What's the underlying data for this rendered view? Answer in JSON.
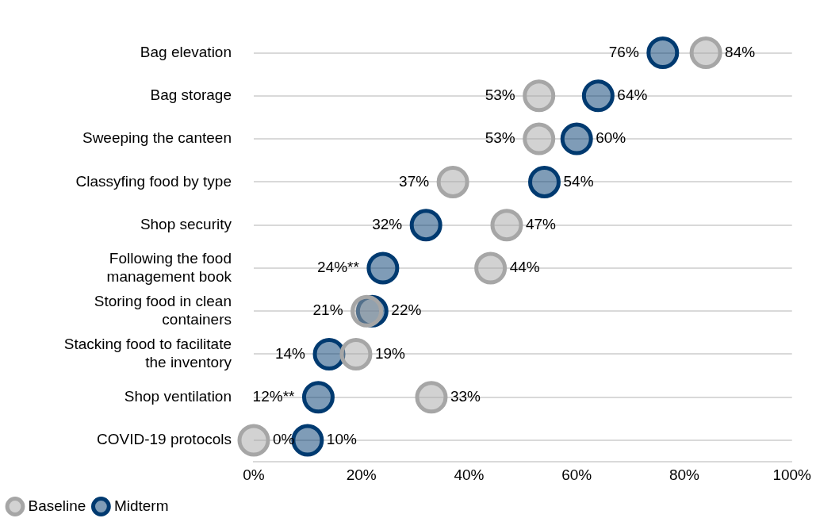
{
  "chart_data": {
    "type": "scatter",
    "orientation": "horizontal",
    "categories": [
      "Bag elevation",
      "Bag storage",
      "Sweeping the canteen",
      "Classyfing food by type",
      "Shop security",
      "Following the food management book",
      "Storing food in clean containers",
      "Stacking food to facilitate the inventory",
      "Shop ventilation",
      "COVID-19 protocols"
    ],
    "series": [
      {
        "name": "Baseline",
        "color": "#a6a6a6",
        "values": [
          84,
          53,
          53,
          37,
          47,
          44,
          21,
          19,
          33,
          0
        ],
        "value_labels": [
          "84%",
          "53%",
          "53%",
          "37%",
          "47%",
          "44%",
          "21%",
          "19%",
          "33%",
          "0%"
        ]
      },
      {
        "name": "Midterm",
        "color": "#003a70",
        "values": [
          76,
          64,
          60,
          54,
          32,
          24,
          22,
          14,
          12,
          10
        ],
        "value_labels": [
          "76%",
          "64%",
          "60%",
          "54%",
          "32%",
          "24%**",
          "22%",
          "14%",
          "12%**",
          "10%"
        ]
      }
    ],
    "xlim": [
      0,
      100
    ],
    "xticks": [
      {
        "value": 0,
        "label": "0%"
      },
      {
        "value": 20,
        "label": "20%"
      },
      {
        "value": 40,
        "label": "40%"
      },
      {
        "value": 60,
        "label": "60%"
      },
      {
        "value": 80,
        "label": "80%"
      },
      {
        "value": 100,
        "label": "100%"
      }
    ],
    "grid": "y",
    "legend": "bottom left",
    "marker": "circle"
  }
}
